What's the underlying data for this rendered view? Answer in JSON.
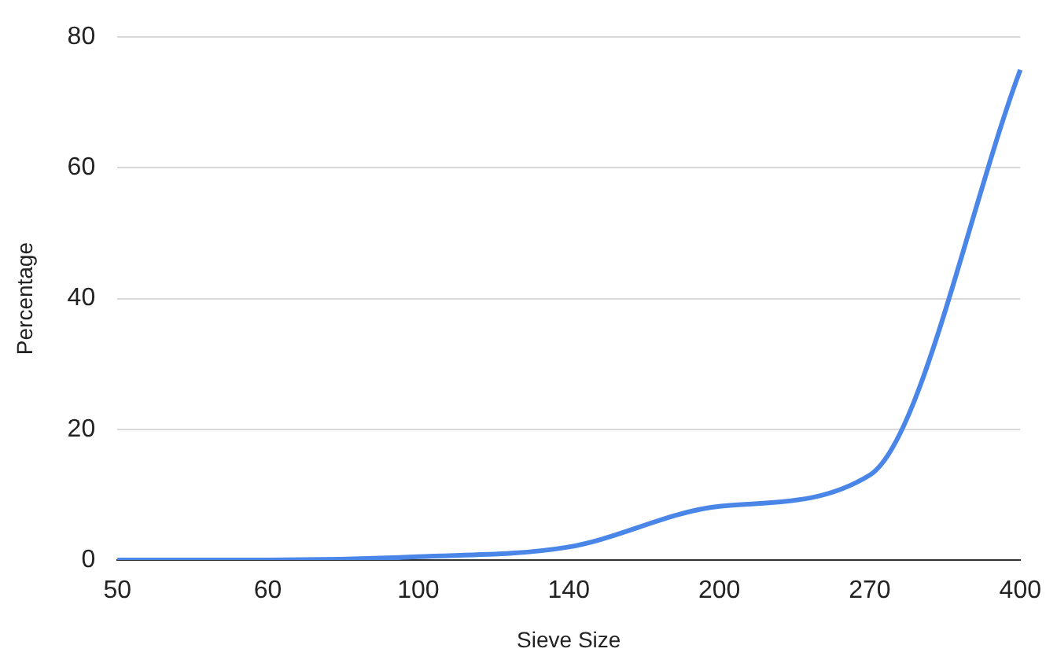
{
  "chart_data": {
    "type": "line",
    "xlabel": "Sieve Size",
    "ylabel": "Percentage",
    "categories": [
      "50",
      "60",
      "100",
      "140",
      "200",
      "270",
      "400"
    ],
    "series": [
      {
        "color": "#4a86e8",
        "values": [
          0,
          0,
          0.5,
          2,
          8.2,
          13,
          75
        ]
      }
    ],
    "ylim": [
      0,
      80
    ],
    "yticks": [
      0,
      20,
      40,
      60,
      80
    ],
    "grid": "y",
    "legend": false,
    "marker": "none",
    "line_style": "solid"
  }
}
